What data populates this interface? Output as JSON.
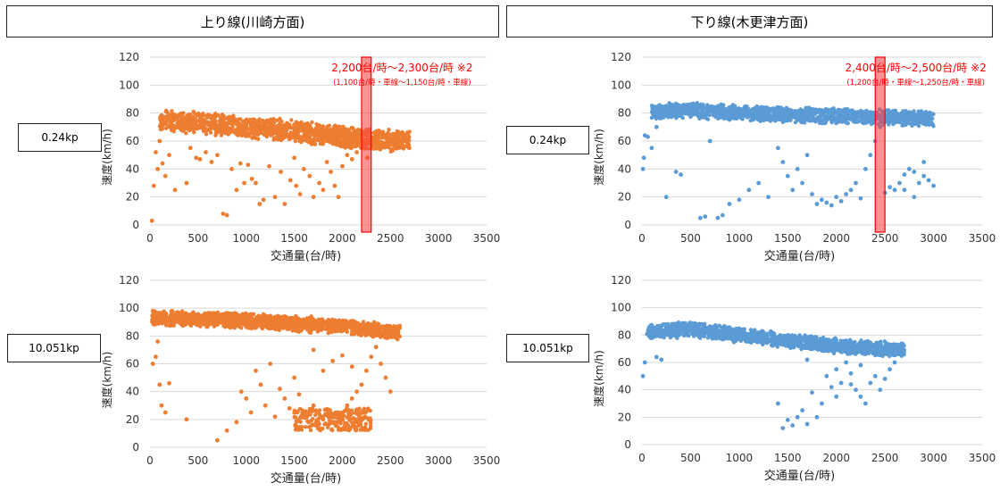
{
  "headers": {
    "left": "上り線(川崎方面)",
    "right": "下り線(木更津方面)"
  },
  "colors": {
    "orange": "#ED7D31",
    "blue": "#5B9BD5",
    "annotation_red": "#FF0000",
    "band_fill": "#FF3B3B"
  },
  "chart_data": [
    {
      "type": "scatter",
      "location": "0.24kp",
      "direction": "上り線(川崎方面)",
      "color": "#ED7D31",
      "xlabel": "交通量(台/時)",
      "ylabel": "速度(km/h)",
      "xlim": [
        0,
        3500
      ],
      "ylim": [
        0,
        120
      ],
      "xticks": [
        0,
        500,
        1000,
        1500,
        2000,
        2500,
        3000,
        3500
      ],
      "yticks": [
        0,
        20,
        40,
        60,
        80,
        100,
        120
      ],
      "grid": true,
      "main_trend": {
        "x": [
          100,
          500,
          1000,
          1500,
          2000,
          2300,
          2700
        ],
        "y": [
          75,
          73,
          70,
          67,
          63,
          61,
          60
        ],
        "spread": 7
      },
      "points": [
        [
          20,
          3
        ],
        [
          40,
          28
        ],
        [
          60,
          52
        ],
        [
          80,
          40
        ],
        [
          100,
          60
        ],
        [
          130,
          44
        ],
        [
          160,
          35
        ],
        [
          200,
          50
        ],
        [
          260,
          25
        ],
        [
          380,
          30
        ],
        [
          420,
          55
        ],
        [
          480,
          48
        ],
        [
          520,
          47
        ],
        [
          580,
          52
        ],
        [
          640,
          45
        ],
        [
          700,
          50
        ],
        [
          760,
          8
        ],
        [
          800,
          7
        ],
        [
          850,
          40
        ],
        [
          900,
          25
        ],
        [
          940,
          44
        ],
        [
          980,
          30
        ],
        [
          1020,
          43
        ],
        [
          1060,
          33
        ],
        [
          1100,
          30
        ],
        [
          1140,
          15
        ],
        [
          1180,
          18
        ],
        [
          1240,
          42
        ],
        [
          1300,
          20
        ],
        [
          1360,
          38
        ],
        [
          1400,
          15
        ],
        [
          1460,
          32
        ],
        [
          1500,
          48
        ],
        [
          1520,
          28
        ],
        [
          1560,
          22
        ],
        [
          1600,
          40
        ],
        [
          1660,
          35
        ],
        [
          1700,
          20
        ],
        [
          1760,
          30
        ],
        [
          1800,
          25
        ],
        [
          1840,
          45
        ],
        [
          1880,
          38
        ],
        [
          1920,
          28
        ],
        [
          1960,
          20
        ],
        [
          2000,
          42
        ],
        [
          2050,
          50
        ],
        [
          2100,
          47
        ],
        [
          2150,
          52
        ],
        [
          2200,
          55
        ],
        [
          2260,
          48
        ]
      ],
      "highlight_band": {
        "x": [
          2200,
          2300
        ],
        "label1": "2,200台/時〜2,300台/時 ※2",
        "label2": "(1,100台/時・車線〜1,150台/時・車線)"
      }
    },
    {
      "type": "scatter",
      "location": "0.24kp",
      "direction": "下り線(木更津方面)",
      "color": "#5B9BD5",
      "xlabel": "交通量(台/時)",
      "ylabel": "速度(km/h)",
      "xlim": [
        0,
        3500
      ],
      "ylim": [
        0,
        120
      ],
      "xticks": [
        0,
        500,
        1000,
        1500,
        2000,
        2500,
        3000,
        3500
      ],
      "yticks": [
        0,
        20,
        40,
        60,
        80,
        100,
        120
      ],
      "grid": true,
      "main_trend": {
        "x": [
          100,
          500,
          1000,
          1500,
          2000,
          2500,
          3000
        ],
        "y": [
          81,
          82,
          80,
          79,
          78,
          77,
          76
        ],
        "spread": 5
      },
      "points": [
        [
          10,
          40
        ],
        [
          20,
          48
        ],
        [
          30,
          64
        ],
        [
          60,
          63
        ],
        [
          100,
          55
        ],
        [
          150,
          70
        ],
        [
          250,
          20
        ],
        [
          350,
          38
        ],
        [
          400,
          36
        ],
        [
          600,
          5
        ],
        [
          650,
          6
        ],
        [
          700,
          60
        ],
        [
          780,
          5
        ],
        [
          830,
          7
        ],
        [
          900,
          15
        ],
        [
          1000,
          18
        ],
        [
          1100,
          25
        ],
        [
          1200,
          30
        ],
        [
          1300,
          20
        ],
        [
          1400,
          55
        ],
        [
          1450,
          45
        ],
        [
          1500,
          35
        ],
        [
          1550,
          25
        ],
        [
          1600,
          40
        ],
        [
          1650,
          30
        ],
        [
          1700,
          50
        ],
        [
          1750,
          22
        ],
        [
          1800,
          15
        ],
        [
          1850,
          18
        ],
        [
          1900,
          16
        ],
        [
          1950,
          14
        ],
        [
          2000,
          20
        ],
        [
          2050,
          17
        ],
        [
          2100,
          22
        ],
        [
          2150,
          25
        ],
        [
          2200,
          30
        ],
        [
          2250,
          19
        ],
        [
          2300,
          40
        ],
        [
          2350,
          50
        ],
        [
          2400,
          60
        ],
        [
          2450,
          70
        ],
        [
          2500,
          23
        ],
        [
          2550,
          27
        ],
        [
          2600,
          25
        ],
        [
          2650,
          30
        ],
        [
          2700,
          36
        ],
        [
          2750,
          40
        ],
        [
          2800,
          38
        ],
        [
          2850,
          30
        ],
        [
          2900,
          45
        ],
        [
          2950,
          32
        ],
        [
          3000,
          28
        ],
        [
          2700,
          25
        ],
        [
          2800,
          20
        ],
        [
          2900,
          35
        ]
      ],
      "highlight_band": {
        "x": [
          2400,
          2500
        ],
        "label1": "2,400台/時〜2,500台/時 ※2",
        "label2": "(1,200台/時・車線〜1,250台/時・車線)"
      }
    },
    {
      "type": "scatter",
      "location": "10.051kp",
      "direction": "上り線(川崎方面)",
      "color": "#ED7D31",
      "xlabel": "交通量(台/時)",
      "ylabel": "速度(km/h)",
      "xlim": [
        0,
        3500
      ],
      "ylim": [
        0,
        120
      ],
      "xticks": [
        0,
        500,
        1000,
        1500,
        2000,
        2500,
        3000,
        3500
      ],
      "yticks": [
        0,
        20,
        40,
        60,
        80,
        100,
        120
      ],
      "grid": true,
      "main_trend": {
        "x": [
          20,
          500,
          1000,
          1500,
          2000,
          2300,
          2600
        ],
        "y": [
          93,
          92,
          91,
          89,
          87,
          85,
          82
        ],
        "spread": 5
      },
      "points": [
        [
          30,
          60
        ],
        [
          60,
          65
        ],
        [
          80,
          76
        ],
        [
          100,
          45
        ],
        [
          120,
          30
        ],
        [
          160,
          25
        ],
        [
          200,
          46
        ],
        [
          380,
          20
        ],
        [
          700,
          5
        ],
        [
          800,
          12
        ],
        [
          900,
          18
        ],
        [
          950,
          40
        ],
        [
          1000,
          35
        ],
        [
          1050,
          25
        ],
        [
          1100,
          55
        ],
        [
          1150,
          45
        ],
        [
          1200,
          30
        ],
        [
          1250,
          60
        ],
        [
          1300,
          22
        ],
        [
          1350,
          42
        ],
        [
          1400,
          35
        ],
        [
          1450,
          28
        ],
        [
          1500,
          50
        ],
        [
          1550,
          38
        ],
        [
          1600,
          22
        ],
        [
          1650,
          18
        ],
        [
          1700,
          30
        ],
        [
          1750,
          25
        ],
        [
          1800,
          20
        ],
        [
          1850,
          16
        ],
        [
          1900,
          22
        ],
        [
          1950,
          18
        ],
        [
          2000,
          24
        ],
        [
          2050,
          30
        ],
        [
          2100,
          35
        ],
        [
          2150,
          40
        ],
        [
          2200,
          45
        ],
        [
          2250,
          55
        ],
        [
          2300,
          65
        ],
        [
          2350,
          72
        ],
        [
          2400,
          60
        ],
        [
          2450,
          50
        ],
        [
          2500,
          40
        ],
        [
          1800,
          55
        ],
        [
          1900,
          62
        ],
        [
          2000,
          66
        ],
        [
          2100,
          58
        ],
        [
          1700,
          70
        ]
      ],
      "dense_cluster": {
        "x": [
          1500,
          2300
        ],
        "y": [
          12,
          28
        ]
      }
    },
    {
      "type": "scatter",
      "location": "10.051kp",
      "direction": "下り線(木更津方面)",
      "color": "#5B9BD5",
      "xlabel": "交通量(台/時)",
      "ylabel": "速度(km/h)",
      "xlim": [
        0,
        3500
      ],
      "ylim": [
        0,
        120
      ],
      "xticks": [
        0,
        500,
        1000,
        1500,
        2000,
        2500,
        3000,
        3500
      ],
      "yticks": [
        0,
        20,
        40,
        60,
        80,
        100,
        120
      ],
      "grid": true,
      "main_trend": {
        "x": [
          50,
          500,
          1000,
          1500,
          2000,
          2500,
          2700
        ],
        "y": [
          82,
          84,
          80,
          76,
          72,
          70,
          69
        ],
        "spread": 5
      },
      "points": [
        [
          10,
          50
        ],
        [
          30,
          60
        ],
        [
          150,
          64
        ],
        [
          200,
          62
        ],
        [
          1400,
          30
        ],
        [
          1450,
          12
        ],
        [
          1500,
          18
        ],
        [
          1550,
          14
        ],
        [
          1600,
          20
        ],
        [
          1650,
          25
        ],
        [
          1700,
          15
        ],
        [
          1750,
          38
        ],
        [
          1800,
          20
        ],
        [
          1850,
          30
        ],
        [
          1900,
          50
        ],
        [
          1950,
          42
        ],
        [
          2000,
          55
        ],
        [
          2050,
          45
        ],
        [
          2100,
          60
        ],
        [
          2150,
          52
        ],
        [
          2200,
          40
        ],
        [
          2250,
          35
        ],
        [
          2300,
          30
        ],
        [
          2350,
          45
        ],
        [
          2400,
          50
        ],
        [
          2450,
          40
        ],
        [
          2500,
          48
        ],
        [
          2550,
          55
        ],
        [
          2600,
          60
        ],
        [
          2000,
          35
        ],
        [
          2150,
          44
        ],
        [
          2250,
          58
        ],
        [
          1700,
          62
        ]
      ]
    }
  ],
  "kp_labels": [
    "0.24kp",
    "0.24kp",
    "10.051kp",
    "10.051kp"
  ]
}
